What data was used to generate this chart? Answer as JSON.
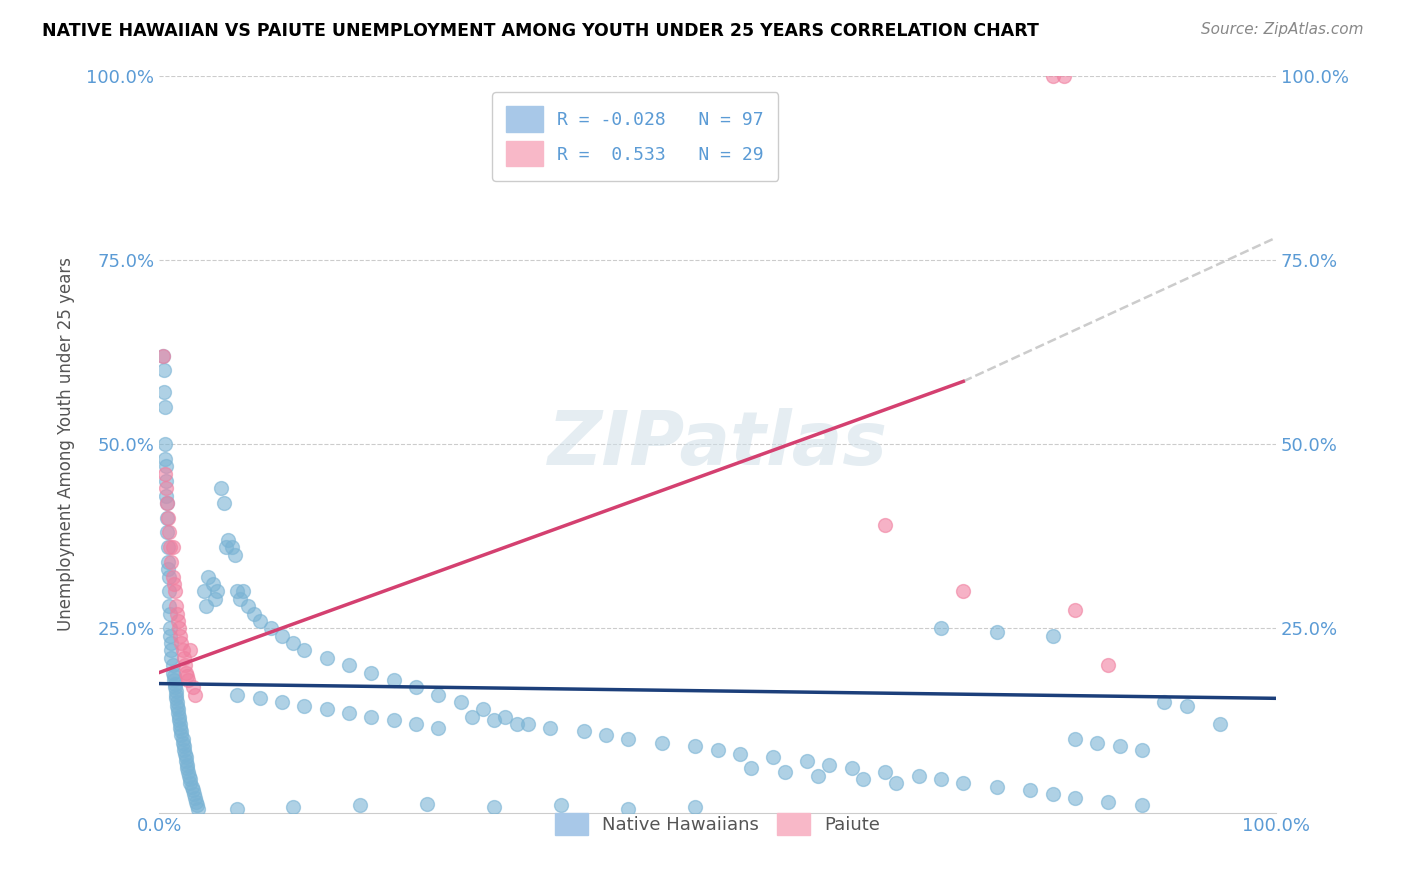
{
  "title": "NATIVE HAWAIIAN VS PAIUTE UNEMPLOYMENT AMONG YOUTH UNDER 25 YEARS CORRELATION CHART",
  "source": "Source: ZipAtlas.com",
  "ylabel": "Unemployment Among Youth under 25 years",
  "xlim": [
    0,
    1
  ],
  "ylim": [
    0,
    1
  ],
  "blue_color": "#7ab3d4",
  "pink_color": "#f080a0",
  "blue_line_color": "#1c3f7a",
  "pink_line_color": "#d44070",
  "dashed_line_color": "#cccccc",
  "watermark": "ZIPatlas",
  "blue_line": {
    "x0": 0.0,
    "y0": 0.175,
    "x1": 1.0,
    "y1": 0.155
  },
  "pink_line_solid": {
    "x0": 0.0,
    "y0": 0.19,
    "x1": 0.72,
    "y1": 0.585
  },
  "pink_line_dashed": {
    "x0": 0.72,
    "y0": 0.585,
    "x1": 1.0,
    "y1": 0.78
  },
  "native_hawaiian_points": [
    [
      0.003,
      0.62
    ],
    [
      0.004,
      0.6
    ],
    [
      0.004,
      0.57
    ],
    [
      0.005,
      0.55
    ],
    [
      0.005,
      0.5
    ],
    [
      0.005,
      0.48
    ],
    [
      0.006,
      0.47
    ],
    [
      0.006,
      0.45
    ],
    [
      0.006,
      0.43
    ],
    [
      0.007,
      0.42
    ],
    [
      0.007,
      0.4
    ],
    [
      0.007,
      0.38
    ],
    [
      0.008,
      0.36
    ],
    [
      0.008,
      0.34
    ],
    [
      0.008,
      0.33
    ],
    [
      0.009,
      0.32
    ],
    [
      0.009,
      0.3
    ],
    [
      0.009,
      0.28
    ],
    [
      0.01,
      0.27
    ],
    [
      0.01,
      0.25
    ],
    [
      0.01,
      0.24
    ],
    [
      0.011,
      0.23
    ],
    [
      0.011,
      0.22
    ],
    [
      0.011,
      0.21
    ],
    [
      0.012,
      0.2
    ],
    [
      0.012,
      0.19
    ],
    [
      0.013,
      0.185
    ],
    [
      0.013,
      0.18
    ],
    [
      0.014,
      0.175
    ],
    [
      0.014,
      0.17
    ],
    [
      0.015,
      0.165
    ],
    [
      0.015,
      0.16
    ],
    [
      0.015,
      0.155
    ],
    [
      0.016,
      0.15
    ],
    [
      0.016,
      0.145
    ],
    [
      0.017,
      0.14
    ],
    [
      0.017,
      0.135
    ],
    [
      0.018,
      0.13
    ],
    [
      0.018,
      0.125
    ],
    [
      0.019,
      0.12
    ],
    [
      0.019,
      0.115
    ],
    [
      0.02,
      0.11
    ],
    [
      0.02,
      0.105
    ],
    [
      0.021,
      0.1
    ],
    [
      0.021,
      0.095
    ],
    [
      0.022,
      0.09
    ],
    [
      0.022,
      0.085
    ],
    [
      0.023,
      0.08
    ],
    [
      0.024,
      0.075
    ],
    [
      0.024,
      0.07
    ],
    [
      0.025,
      0.065
    ],
    [
      0.025,
      0.06
    ],
    [
      0.026,
      0.055
    ],
    [
      0.027,
      0.05
    ],
    [
      0.028,
      0.045
    ],
    [
      0.028,
      0.04
    ],
    [
      0.029,
      0.035
    ],
    [
      0.03,
      0.03
    ],
    [
      0.031,
      0.025
    ],
    [
      0.032,
      0.02
    ],
    [
      0.033,
      0.015
    ],
    [
      0.034,
      0.01
    ],
    [
      0.035,
      0.005
    ],
    [
      0.04,
      0.3
    ],
    [
      0.042,
      0.28
    ],
    [
      0.044,
      0.32
    ],
    [
      0.048,
      0.31
    ],
    [
      0.05,
      0.29
    ],
    [
      0.052,
      0.3
    ],
    [
      0.055,
      0.44
    ],
    [
      0.058,
      0.42
    ],
    [
      0.06,
      0.36
    ],
    [
      0.062,
      0.37
    ],
    [
      0.065,
      0.36
    ],
    [
      0.068,
      0.35
    ],
    [
      0.07,
      0.3
    ],
    [
      0.072,
      0.29
    ],
    [
      0.075,
      0.3
    ],
    [
      0.08,
      0.28
    ],
    [
      0.085,
      0.27
    ],
    [
      0.09,
      0.26
    ],
    [
      0.1,
      0.25
    ],
    [
      0.11,
      0.24
    ],
    [
      0.12,
      0.23
    ],
    [
      0.13,
      0.22
    ],
    [
      0.15,
      0.21
    ],
    [
      0.17,
      0.2
    ],
    [
      0.19,
      0.19
    ],
    [
      0.21,
      0.18
    ],
    [
      0.23,
      0.17
    ],
    [
      0.25,
      0.16
    ],
    [
      0.27,
      0.15
    ],
    [
      0.29,
      0.14
    ],
    [
      0.31,
      0.13
    ],
    [
      0.33,
      0.12
    ],
    [
      0.07,
      0.16
    ],
    [
      0.09,
      0.155
    ],
    [
      0.11,
      0.15
    ],
    [
      0.13,
      0.145
    ],
    [
      0.15,
      0.14
    ],
    [
      0.17,
      0.135
    ],
    [
      0.19,
      0.13
    ],
    [
      0.21,
      0.125
    ],
    [
      0.23,
      0.12
    ],
    [
      0.25,
      0.115
    ],
    [
      0.28,
      0.13
    ],
    [
      0.3,
      0.125
    ],
    [
      0.32,
      0.12
    ],
    [
      0.35,
      0.115
    ],
    [
      0.38,
      0.11
    ],
    [
      0.4,
      0.105
    ],
    [
      0.42,
      0.1
    ],
    [
      0.45,
      0.095
    ],
    [
      0.48,
      0.09
    ],
    [
      0.5,
      0.085
    ],
    [
      0.52,
      0.08
    ],
    [
      0.55,
      0.075
    ],
    [
      0.58,
      0.07
    ],
    [
      0.6,
      0.065
    ],
    [
      0.62,
      0.06
    ],
    [
      0.65,
      0.055
    ],
    [
      0.68,
      0.05
    ],
    [
      0.7,
      0.045
    ],
    [
      0.72,
      0.04
    ],
    [
      0.75,
      0.035
    ],
    [
      0.78,
      0.03
    ],
    [
      0.8,
      0.025
    ],
    [
      0.82,
      0.02
    ],
    [
      0.85,
      0.015
    ],
    [
      0.88,
      0.01
    ],
    [
      0.95,
      0.12
    ],
    [
      0.07,
      0.005
    ],
    [
      0.12,
      0.008
    ],
    [
      0.18,
      0.01
    ],
    [
      0.24,
      0.012
    ],
    [
      0.3,
      0.008
    ],
    [
      0.36,
      0.01
    ],
    [
      0.42,
      0.005
    ],
    [
      0.48,
      0.008
    ],
    [
      0.53,
      0.06
    ],
    [
      0.56,
      0.055
    ],
    [
      0.59,
      0.05
    ],
    [
      0.63,
      0.045
    ],
    [
      0.66,
      0.04
    ],
    [
      0.7,
      0.25
    ],
    [
      0.75,
      0.245
    ],
    [
      0.8,
      0.24
    ],
    [
      0.82,
      0.1
    ],
    [
      0.84,
      0.095
    ],
    [
      0.86,
      0.09
    ],
    [
      0.88,
      0.085
    ],
    [
      0.9,
      0.15
    ],
    [
      0.92,
      0.145
    ]
  ],
  "paiute_points": [
    [
      0.003,
      0.62
    ],
    [
      0.005,
      0.46
    ],
    [
      0.006,
      0.44
    ],
    [
      0.007,
      0.42
    ],
    [
      0.008,
      0.4
    ],
    [
      0.009,
      0.38
    ],
    [
      0.01,
      0.36
    ],
    [
      0.011,
      0.34
    ],
    [
      0.012,
      0.36
    ],
    [
      0.012,
      0.32
    ],
    [
      0.013,
      0.31
    ],
    [
      0.014,
      0.3
    ],
    [
      0.015,
      0.28
    ],
    [
      0.016,
      0.27
    ],
    [
      0.017,
      0.26
    ],
    [
      0.018,
      0.25
    ],
    [
      0.019,
      0.24
    ],
    [
      0.02,
      0.23
    ],
    [
      0.021,
      0.22
    ],
    [
      0.022,
      0.21
    ],
    [
      0.023,
      0.2
    ],
    [
      0.024,
      0.19
    ],
    [
      0.025,
      0.185
    ],
    [
      0.026,
      0.18
    ],
    [
      0.028,
      0.22
    ],
    [
      0.03,
      0.17
    ],
    [
      0.032,
      0.16
    ],
    [
      0.65,
      0.39
    ],
    [
      0.72,
      0.3
    ],
    [
      0.8,
      1.0
    ],
    [
      0.81,
      1.0
    ],
    [
      0.82,
      0.275
    ],
    [
      0.85,
      0.2
    ]
  ]
}
